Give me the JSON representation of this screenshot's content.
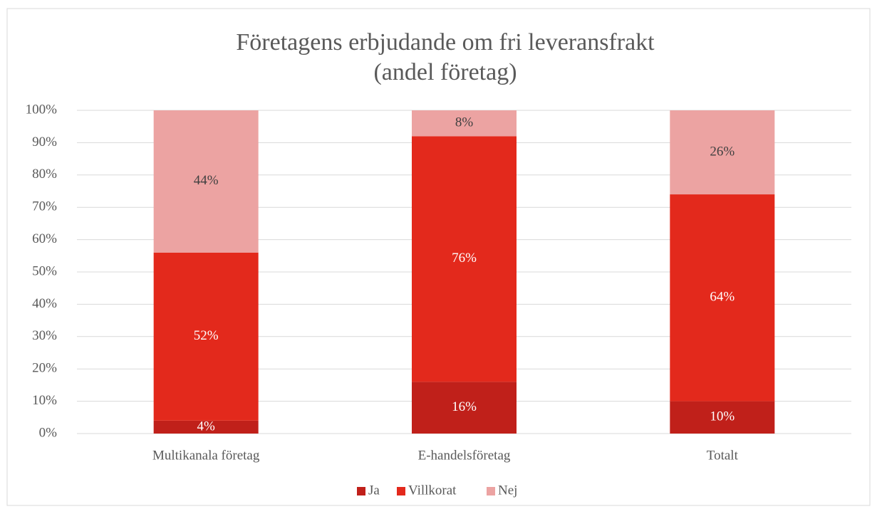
{
  "chart_data": {
    "type": "stacked_bar",
    "title": [
      "Företagens erbjudande om fri leveransfrakt",
      "(andel företag)"
    ],
    "categories": [
      "Multikanala företag",
      "E-handelsföretag",
      "Totalt"
    ],
    "series": [
      {
        "name": "Ja",
        "color": "#c0201a",
        "label_color": "#ffffff",
        "values": [
          4,
          16,
          10
        ],
        "value_labels": [
          "4%",
          "16%",
          "10%"
        ]
      },
      {
        "name": "Villkorat",
        "color": "#e3291c",
        "label_color": "#ffffff",
        "values": [
          52,
          76,
          64
        ],
        "value_labels": [
          "52%",
          "76%",
          "64%"
        ]
      },
      {
        "name": "Nej",
        "color": "#eca3a2",
        "label_color": "#404040",
        "values": [
          44,
          8,
          26
        ],
        "value_labels": [
          "44%",
          "8%",
          "26%"
        ]
      }
    ],
    "ylim": [
      0,
      100
    ],
    "yticks": [
      {
        "value": 0,
        "label": "0%"
      },
      {
        "value": 10,
        "label": "10%"
      },
      {
        "value": 20,
        "label": "20%"
      },
      {
        "value": 30,
        "label": "30%"
      },
      {
        "value": 40,
        "label": "40%"
      },
      {
        "value": 50,
        "label": "50%"
      },
      {
        "value": 60,
        "label": "60%"
      },
      {
        "value": 70,
        "label": "70%"
      },
      {
        "value": 80,
        "label": "80%"
      },
      {
        "value": 90,
        "label": "90%"
      },
      {
        "value": 100,
        "label": "100%"
      }
    ],
    "grid": true,
    "legend": "bottom"
  }
}
